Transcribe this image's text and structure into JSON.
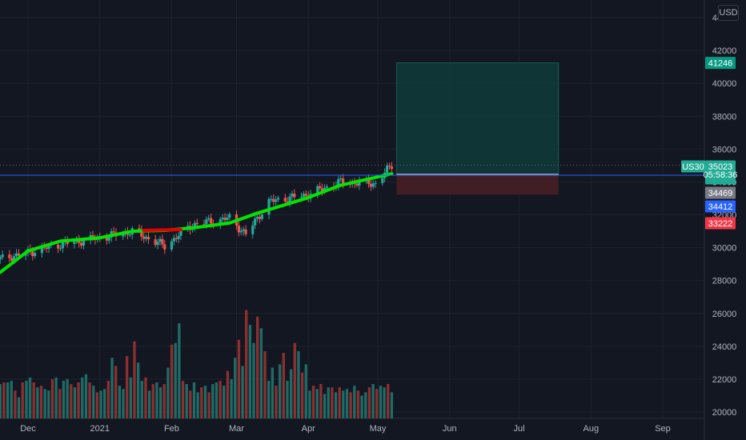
{
  "currency_button": "USD",
  "symbol_tag": "US30",
  "countdown": "05:58:36",
  "price_labels": [
    {
      "value": 41246,
      "text": "41246",
      "color": "#089981"
    },
    {
      "value": 35023,
      "text": "35023",
      "color": "#22ab94"
    },
    {
      "value": 34469,
      "text": "34469",
      "color": "#787b86"
    },
    {
      "value": 34412,
      "text": "34412",
      "color": "#2962ff"
    },
    {
      "value": 33222,
      "text": "33222",
      "color": "#f23645"
    }
  ],
  "colors": {
    "background": "#131722",
    "grid": "#1e222d",
    "up": "#26a69a",
    "down": "#ef5350",
    "ma_up": "#00e600",
    "ma_down": "#e60000",
    "price_line": "#2962ff",
    "target_zone": "#0f3b3b",
    "stop_zone": "#4a1e24"
  },
  "chart_data": {
    "type": "candlestick",
    "y_axis": {
      "min": 20000,
      "max": 44000,
      "ticks": [
        20000,
        22000,
        24000,
        26000,
        28000,
        30000,
        32000,
        34000,
        36000,
        38000,
        40000,
        42000,
        44000
      ],
      "tick_labels": [
        "20000",
        "22000",
        "24000",
        "26000",
        "28000",
        "30000",
        "32000",
        "34000",
        "36000",
        "38000",
        "40000",
        "42000",
        "44000"
      ]
    },
    "x_axis": {
      "tick_labels": [
        "Dec",
        "2021",
        "Feb",
        "Mar",
        "Apr",
        "May",
        "Jun",
        "Jul",
        "Aug",
        "Sep"
      ],
      "tick_dates": [
        "2020-12-01",
        "2021-01-01",
        "2021-02-01",
        "2021-03-01",
        "2021-04-01",
        "2021-05-01",
        "2021-06-01",
        "2021-07-01",
        "2021-08-01",
        "2021-09-01"
      ],
      "range": [
        "2020-11-19",
        "2021-09-18"
      ]
    },
    "price_trend": [
      {
        "date": "2020-11-19",
        "close": 29300
      },
      {
        "date": "2020-12-01",
        "close": 29700
      },
      {
        "date": "2020-12-15",
        "close": 30200
      },
      {
        "date": "2021-01-01",
        "close": 30600
      },
      {
        "date": "2021-01-15",
        "close": 31000
      },
      {
        "date": "2021-01-29",
        "close": 30100
      },
      {
        "date": "2021-02-10",
        "close": 31400
      },
      {
        "date": "2021-02-26",
        "close": 31800
      },
      {
        "date": "2021-03-05",
        "close": 30800
      },
      {
        "date": "2021-03-15",
        "close": 32800
      },
      {
        "date": "2021-03-31",
        "close": 33200
      },
      {
        "date": "2021-04-15",
        "close": 34000
      },
      {
        "date": "2021-04-30",
        "close": 33900
      },
      {
        "date": "2021-05-07",
        "close": 35023
      }
    ],
    "moving_average": [
      {
        "date": "2020-11-19",
        "value": 28500
      },
      {
        "date": "2020-12-01",
        "value": 29800
      },
      {
        "date": "2020-12-15",
        "value": 30400
      },
      {
        "date": "2021-01-01",
        "value": 30600
      },
      {
        "date": "2021-01-15",
        "value": 31000
      },
      {
        "date": "2021-01-29",
        "value": 31050
      },
      {
        "date": "2021-02-10",
        "value": 31200
      },
      {
        "date": "2021-02-26",
        "value": 31500
      },
      {
        "date": "2021-03-10",
        "value": 32100
      },
      {
        "date": "2021-03-31",
        "value": 33000
      },
      {
        "date": "2021-04-15",
        "value": 33800
      },
      {
        "date": "2021-05-07",
        "value": 34500
      }
    ],
    "ma_down_segments": [
      [
        "2021-01-20",
        "2021-02-05"
      ]
    ],
    "volume_bars": {
      "start_date": "2020-11-19",
      "end_date": "2021-05-07",
      "max_height_value": 26200,
      "baseline_value": 20000,
      "note_heights": [
        21700,
        21800,
        21800,
        21900,
        21300,
        20900,
        21800,
        21900,
        22100,
        21800,
        21500,
        21600,
        21400,
        21300,
        22000,
        22100,
        21400,
        21900,
        22000,
        21700,
        21500,
        21800,
        22100,
        22300,
        21800,
        21600,
        21200,
        21300,
        21400,
        21900,
        23300,
        22800,
        21600,
        21400,
        23400,
        22100,
        24300,
        23000,
        21900,
        22100,
        21300,
        21700,
        21800,
        21500,
        21700,
        22700,
        24100,
        24200,
        25400,
        21900,
        21700,
        21300,
        21800,
        21200,
        21500,
        21600,
        21200,
        21700,
        21800,
        21900,
        21600,
        22500,
        22000,
        23300,
        24400,
        22800,
        26200,
        25300,
        24200,
        25800,
        25100,
        23700,
        21900,
        22700,
        21600,
        22900,
        23600,
        21900,
        22600,
        24200,
        23700,
        22400,
        22900,
        21300,
        21600,
        21400,
        21700,
        21100,
        21500,
        21500,
        21200,
        21500,
        21300,
        21400,
        21200,
        21600,
        21300,
        21000,
        21200,
        21500,
        21700,
        21400,
        21600,
        21500,
        21700,
        21200
      ]
    },
    "position": {
      "entry": 34469,
      "target": 41246,
      "stop": 33222,
      "start_date": "2021-05-07",
      "end_date": "2021-07-18"
    }
  }
}
